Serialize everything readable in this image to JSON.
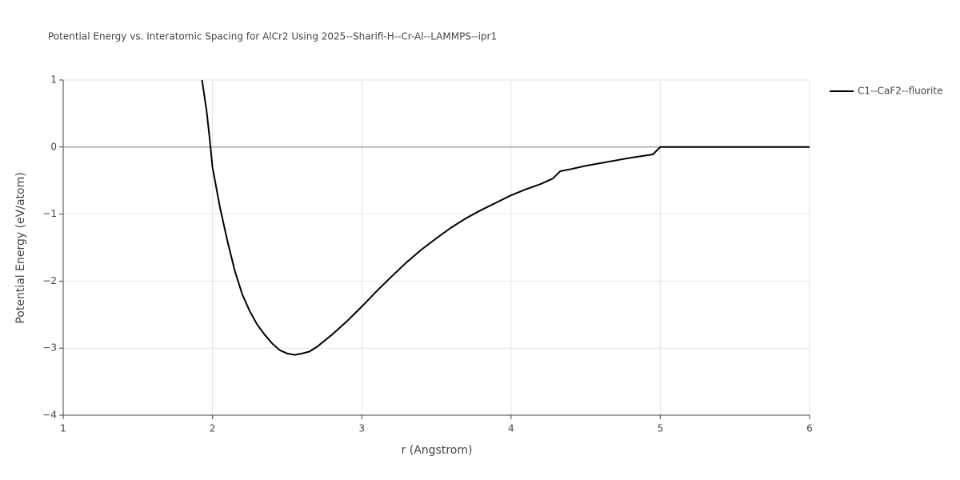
{
  "chart_data": {
    "type": "line",
    "title": "Potential Energy vs. Interatomic Spacing for AlCr2 Using 2025--Sharifi-H--Cr-Al--LAMMPS--ipr1",
    "x_label": "r (Angstrom)",
    "y_label": "Potential Energy (eV/atom)",
    "x": [
      1.93,
      1.96,
      1.98,
      2.0,
      2.05,
      2.1,
      2.15,
      2.2,
      2.25,
      2.3,
      2.35,
      2.4,
      2.45,
      2.5,
      2.55,
      2.6,
      2.65,
      2.7,
      2.8,
      2.9,
      3.0,
      3.1,
      3.2,
      3.3,
      3.4,
      3.5,
      3.6,
      3.7,
      3.8,
      3.9,
      4.0,
      4.1,
      4.2,
      4.28,
      4.33,
      4.4,
      4.5,
      4.6,
      4.7,
      4.8,
      4.95,
      5.0,
      6.0
    ],
    "series": [
      {
        "name": "C1--CaF2--fluorite",
        "color": "#000000",
        "values": [
          1.0,
          0.55,
          0.15,
          -0.3,
          -0.9,
          -1.4,
          -1.85,
          -2.2,
          -2.45,
          -2.65,
          -2.8,
          -2.93,
          -3.03,
          -3.08,
          -3.1,
          -3.08,
          -3.05,
          -2.98,
          -2.8,
          -2.6,
          -2.38,
          -2.15,
          -1.93,
          -1.72,
          -1.53,
          -1.36,
          -1.2,
          -1.06,
          -0.94,
          -0.83,
          -0.72,
          -0.63,
          -0.55,
          -0.47,
          -0.36,
          -0.33,
          -0.28,
          -0.24,
          -0.2,
          -0.16,
          -0.11,
          0,
          0
        ]
      }
    ],
    "xlim": [
      1,
      6
    ],
    "xticks": [
      1,
      2,
      3,
      4,
      5,
      6
    ],
    "ylim": [
      -4,
      1
    ],
    "yticks": [
      {
        "value": -4,
        "label": "−4"
      },
      {
        "value": -3,
        "label": "−3"
      },
      {
        "value": -2,
        "label": "−2"
      },
      {
        "value": -1,
        "label": "−1"
      },
      0,
      1
    ],
    "grid": true
  }
}
